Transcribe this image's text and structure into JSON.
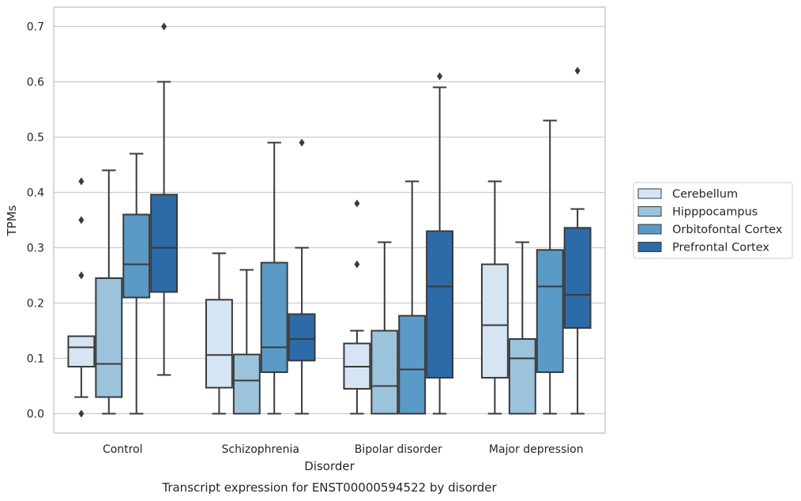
{
  "chart_data": {
    "type": "box",
    "caption": "Transcript expression for ENST00000594522 by disorder",
    "xlabel": "Disorder",
    "ylabel": "TPMs",
    "ylim": [
      -0.035,
      0.735
    ],
    "yticks": [
      0.0,
      0.1,
      0.2,
      0.3,
      0.4,
      0.5,
      0.6,
      0.7
    ],
    "ytick_labels": [
      "0.0",
      "0.1",
      "0.2",
      "0.3",
      "0.4",
      "0.5",
      "0.6",
      "0.7"
    ],
    "grid": "horizontal",
    "legend_position": "right",
    "categories": [
      "Control",
      "Schizophrenia",
      "Bipolar disorder",
      "Major depression"
    ],
    "series": [
      {
        "name": "Cerebellum",
        "color": "#d6e5f3",
        "boxes": [
          {
            "whislo": 0.03,
            "q1": 0.085,
            "med": 0.12,
            "q3": 0.14,
            "whishi": 0.14,
            "fliers": [
              0.0,
              0.25,
              0.35,
              0.42
            ]
          },
          {
            "whislo": 0.0,
            "q1": 0.047,
            "med": 0.106,
            "q3": 0.206,
            "whishi": 0.29,
            "fliers": []
          },
          {
            "whislo": 0.0,
            "q1": 0.045,
            "med": 0.085,
            "q3": 0.127,
            "whishi": 0.15,
            "fliers": [
              0.27,
              0.38
            ]
          },
          {
            "whislo": 0.0,
            "q1": 0.065,
            "med": 0.16,
            "q3": 0.27,
            "whishi": 0.42,
            "fliers": []
          }
        ]
      },
      {
        "name": "Hipppocampus",
        "color": "#9cc3dc",
        "boxes": [
          {
            "whislo": 0.0,
            "q1": 0.03,
            "med": 0.09,
            "q3": 0.245,
            "whishi": 0.44,
            "fliers": []
          },
          {
            "whislo": 0.0,
            "q1": 0.0,
            "med": 0.06,
            "q3": 0.107,
            "whishi": 0.26,
            "fliers": []
          },
          {
            "whislo": 0.0,
            "q1": 0.0,
            "med": 0.05,
            "q3": 0.15,
            "whishi": 0.31,
            "fliers": []
          },
          {
            "whislo": 0.0,
            "q1": 0.0,
            "med": 0.1,
            "q3": 0.135,
            "whishi": 0.31,
            "fliers": []
          }
        ]
      },
      {
        "name": "Orbitofontal Cortex",
        "color": "#5a9ac6",
        "boxes": [
          {
            "whislo": 0.0,
            "q1": 0.21,
            "med": 0.27,
            "q3": 0.36,
            "whishi": 0.47,
            "fliers": []
          },
          {
            "whislo": 0.0,
            "q1": 0.075,
            "med": 0.12,
            "q3": 0.273,
            "whishi": 0.49,
            "fliers": []
          },
          {
            "whislo": 0.0,
            "q1": 0.0,
            "med": 0.08,
            "q3": 0.177,
            "whishi": 0.42,
            "fliers": []
          },
          {
            "whislo": 0.0,
            "q1": 0.075,
            "med": 0.23,
            "q3": 0.296,
            "whishi": 0.53,
            "fliers": []
          }
        ]
      },
      {
        "name": "Prefrontal Cortex",
        "color": "#2d6aa8",
        "boxes": [
          {
            "whislo": 0.07,
            "q1": 0.22,
            "med": 0.3,
            "q3": 0.396,
            "whishi": 0.6,
            "fliers": [
              0.7
            ]
          },
          {
            "whislo": 0.0,
            "q1": 0.096,
            "med": 0.135,
            "q3": 0.18,
            "whishi": 0.3,
            "fliers": [
              0.49
            ]
          },
          {
            "whislo": 0.0,
            "q1": 0.065,
            "med": 0.23,
            "q3": 0.33,
            "whishi": 0.59,
            "fliers": [
              0.61
            ]
          },
          {
            "whislo": 0.0,
            "q1": 0.155,
            "med": 0.215,
            "q3": 0.336,
            "whishi": 0.37,
            "fliers": [
              0.62
            ]
          }
        ]
      }
    ]
  }
}
